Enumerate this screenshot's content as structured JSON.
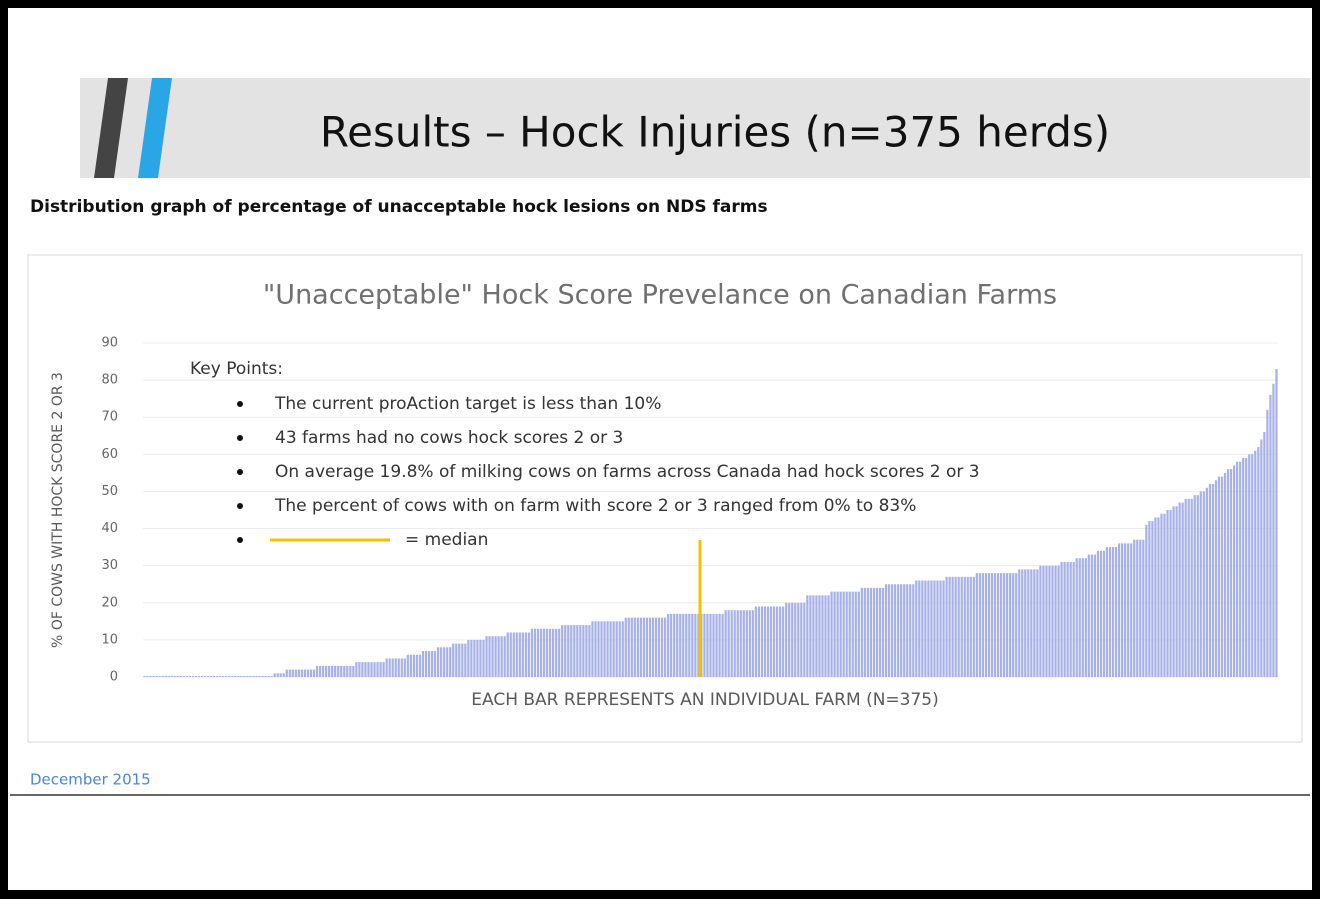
{
  "slide": {
    "title": "Results – Hock Injuries (n=375 herds)",
    "subtitle": "Distribution graph of percentage of unacceptable hock lesions on NDS farms",
    "footer": "December 2015"
  },
  "chart_data": {
    "type": "bar",
    "title": "\"Unacceptable\" Hock Score Prevelance on Canadian Farms",
    "x_label": "EACH BAR REPRESENTS AN INDIVIDUAL FARM (N=375)",
    "y_label": "% OF COWS WITH HOCK SCORE 2 OR 3",
    "annotations": {
      "heading": "Key Points:",
      "points": [
        "The current proAction target is less than 10%",
        "43 farms had no cows hock scores 2 or 3",
        "On average 19.8% of milking cows on farms across Canada had hock scores 2 or 3",
        "The percent of cows with on farm with score 2 or 3 ranged from 0% to 83%"
      ],
      "median_legend": "= median"
    },
    "color": "#a7b1e8",
    "median_color": "#f2c200",
    "grid": true,
    "ylim": [
      0,
      90
    ],
    "yticks": [
      0,
      10,
      20,
      30,
      40,
      50,
      60,
      70,
      80,
      90
    ],
    "values": [
      0,
      0,
      0,
      0,
      0,
      0,
      0,
      0,
      0,
      0,
      0,
      0,
      0,
      0,
      0,
      0,
      0,
      0,
      0,
      0,
      0,
      0,
      0,
      0,
      0,
      0,
      0,
      0,
      0,
      0,
      0,
      0,
      0,
      0,
      0,
      0,
      0,
      0,
      0,
      0,
      0,
      0,
      0,
      1,
      1,
      1,
      1,
      2,
      2,
      2,
      2,
      2,
      2,
      2,
      2,
      2,
      2,
      3,
      3,
      3,
      3,
      3,
      3,
      3,
      3,
      3,
      3,
      3,
      3,
      3,
      4,
      4,
      4,
      4,
      4,
      4,
      4,
      4,
      4,
      4,
      5,
      5,
      5,
      5,
      5,
      5,
      5,
      6,
      6,
      6,
      6,
      6,
      7,
      7,
      7,
      7,
      7,
      8,
      8,
      8,
      8,
      8,
      9,
      9,
      9,
      9,
      9,
      10,
      10,
      10,
      10,
      10,
      10,
      11,
      11,
      11,
      11,
      11,
      11,
      11,
      12,
      12,
      12,
      12,
      12,
      12,
      12,
      12,
      13,
      13,
      13,
      13,
      13,
      13,
      13,
      13,
      13,
      13,
      14,
      14,
      14,
      14,
      14,
      14,
      14,
      14,
      14,
      14,
      15,
      15,
      15,
      15,
      15,
      15,
      15,
      15,
      15,
      15,
      15,
      16,
      16,
      16,
      16,
      16,
      16,
      16,
      16,
      16,
      16,
      16,
      16,
      16,
      16,
      17,
      17,
      17,
      17,
      17,
      17,
      17,
      17,
      17,
      17,
      17,
      17,
      17,
      17,
      17,
      17,
      17,
      17,
      17,
      18,
      18,
      18,
      18,
      18,
      18,
      18,
      18,
      18,
      18,
      19,
      19,
      19,
      19,
      19,
      19,
      19,
      19,
      19,
      19,
      20,
      20,
      20,
      20,
      20,
      20,
      20,
      22,
      22,
      22,
      22,
      22,
      22,
      22,
      22,
      23,
      23,
      23,
      23,
      23,
      23,
      23,
      23,
      23,
      23,
      24,
      24,
      24,
      24,
      24,
      24,
      24,
      24,
      25,
      25,
      25,
      25,
      25,
      25,
      25,
      25,
      25,
      25,
      26,
      26,
      26,
      26,
      26,
      26,
      26,
      26,
      26,
      26,
      27,
      27,
      27,
      27,
      27,
      27,
      27,
      27,
      27,
      27,
      28,
      28,
      28,
      28,
      28,
      28,
      28,
      28,
      28,
      28,
      28,
      28,
      28,
      28,
      29,
      29,
      29,
      29,
      29,
      29,
      29,
      30,
      30,
      30,
      30,
      30,
      30,
      30,
      31,
      31,
      31,
      31,
      31,
      32,
      32,
      32,
      32,
      33,
      33,
      33,
      34,
      34,
      34,
      35,
      35,
      35,
      35,
      36,
      36,
      36,
      36,
      36,
      37,
      37,
      37,
      37,
      41,
      42,
      42,
      43,
      43,
      44,
      44,
      45,
      45,
      46,
      46,
      47,
      47,
      48,
      48,
      48,
      49,
      49,
      50,
      50,
      51,
      52,
      52,
      53,
      54,
      54,
      55,
      56,
      56,
      57,
      58,
      58,
      59,
      59,
      60,
      60,
      61,
      62,
      64,
      66,
      72,
      76,
      79,
      83
    ]
  }
}
